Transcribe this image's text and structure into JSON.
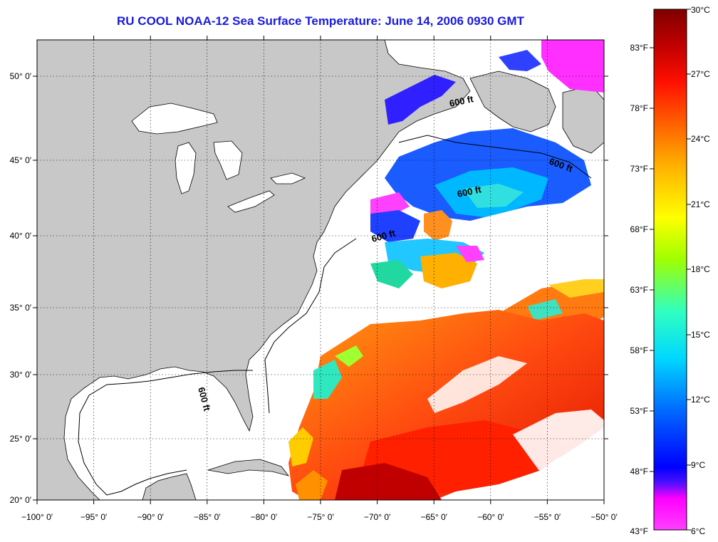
{
  "title": "RU COOL  NOAA-12  Sea Surface Temperature:  June 14, 2006 0930 GMT",
  "map": {
    "lon_labels": [
      "−100° 0′",
      "−95° 0′",
      "−90° 0′",
      "−85° 0′",
      "−80° 0′",
      "−75° 0′",
      "−70° 0′",
      "−65° 0′",
      "−60° 0′",
      "−55° 0′",
      "−50° 0′"
    ],
    "lat_labels": [
      "50° 0′",
      "45° 0′",
      "40° 0′",
      "35° 0′",
      "30° 0′",
      "25° 0′",
      "20° 0′"
    ],
    "contour_labels": [
      "600 ft",
      "600 ft",
      "600 ft",
      "600 ft",
      "600 ft"
    ],
    "colors": {
      "land": "#c8c8c8",
      "cloud": "#ffffff",
      "coast": "#000000"
    }
  },
  "colorbar": {
    "celsius": [
      "30°C",
      "27°C",
      "24°C",
      "21°C",
      "18°C",
      "15°C",
      "12°C",
      "9°C",
      "6°C"
    ],
    "fahrenheit": [
      "83°F",
      "78°F",
      "73°F",
      "68°F",
      "63°F",
      "58°F",
      "53°F",
      "48°F",
      "43°F"
    ],
    "gradient_colors": [
      "#ff40ff",
      "#ff00ff",
      "#4000ff",
      "#0030ff",
      "#0088ff",
      "#00ddff",
      "#30ffc0",
      "#9cff00",
      "#ffff00",
      "#ffb000",
      "#ff6000",
      "#ff1000",
      "#c00000",
      "#800000"
    ]
  }
}
